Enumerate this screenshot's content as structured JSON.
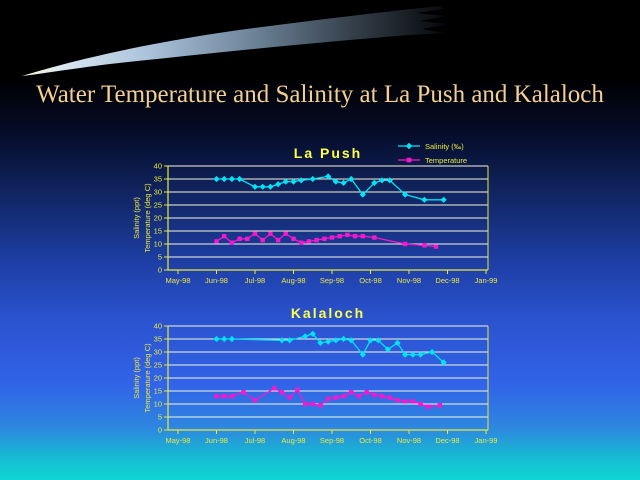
{
  "slide": {
    "title": "Water Temperature and Salinity at La Push and Kalaloch"
  },
  "colors": {
    "title_text": "#f4cf92",
    "chart_text": "#ece93c",
    "chart_title_text": "#ffff4a",
    "axis": "#e8e83a",
    "gridline": "#f6f6dc",
    "salinity": "#00e4f6",
    "temperature": "#f717cf",
    "background_top": "#000000",
    "background_bottom": "#0fd6d2"
  },
  "chart_data": [
    {
      "type": "line",
      "title": "La Push",
      "ylabel": [
        "Salinity (ppt)",
        "Temperature (deg C)"
      ],
      "x_tick_labels": [
        "May-98",
        "Jun-98",
        "Jul-98",
        "Aug-98",
        "Sep-98",
        "Oct-98",
        "Nov-98",
        "Dec-98",
        "Jan-99"
      ],
      "x_unit": "months, May-98 = 0",
      "xlim": [
        0,
        8
      ],
      "ylim": [
        0,
        40
      ],
      "y_ticks": [
        0,
        5,
        10,
        15,
        20,
        25,
        30,
        35,
        40
      ],
      "grid": true,
      "legend": true,
      "legend_position": "top-right",
      "series": [
        {
          "id": "salinity",
          "name": "Salinity (‰)",
          "color": "#00e4f6",
          "marker": "diamond",
          "x": [
            1.0,
            1.2,
            1.4,
            1.6,
            2.0,
            2.2,
            2.4,
            2.6,
            2.8,
            3.0,
            3.2,
            3.5,
            3.9,
            4.1,
            4.3,
            4.5,
            4.8,
            5.1,
            5.3,
            5.5,
            5.9,
            6.4,
            6.9
          ],
          "y": [
            35,
            35,
            35,
            35,
            32,
            32,
            32,
            33,
            34,
            34,
            34.5,
            35,
            36,
            34,
            33.5,
            35,
            29,
            33.5,
            34.5,
            34.5,
            29,
            27,
            27
          ]
        },
        {
          "id": "temperature",
          "name": "Temperature",
          "color": "#f717cf",
          "marker": "square",
          "x": [
            1.0,
            1.2,
            1.4,
            1.6,
            1.8,
            2.0,
            2.2,
            2.4,
            2.6,
            2.8,
            3.0,
            3.2,
            3.4,
            3.6,
            3.8,
            4.0,
            4.2,
            4.4,
            4.6,
            4.8,
            5.1,
            5.9,
            6.4,
            6.7
          ],
          "y": [
            11,
            13,
            10.5,
            12,
            12,
            14,
            11.5,
            14,
            11.5,
            14,
            12,
            10.5,
            11,
            11.5,
            12,
            12.5,
            13,
            13.5,
            13,
            13,
            12.5,
            10,
            9.5,
            9
          ]
        }
      ]
    },
    {
      "type": "line",
      "title": "Kalaloch",
      "ylabel": [
        "Salinity (ppt)",
        "Temperature (deg C)"
      ],
      "x_tick_labels": [
        "May-98",
        "Jun-98",
        "Jul-98",
        "Aug-98",
        "Sep-98",
        "Oct-98",
        "Nov-98",
        "Dec-98",
        "Jan-99"
      ],
      "x_unit": "months, May-98 = 0",
      "xlim": [
        0,
        8
      ],
      "ylim": [
        0,
        40
      ],
      "y_ticks": [
        0,
        5,
        10,
        15,
        20,
        25,
        30,
        35,
        40
      ],
      "grid": true,
      "legend": false,
      "series": [
        {
          "id": "salinity",
          "name": "Salinity (‰)",
          "color": "#00e4f6",
          "marker": "diamond",
          "x": [
            1.0,
            1.2,
            1.4,
            2.7,
            2.9,
            3.3,
            3.5,
            3.7,
            3.9,
            4.1,
            4.3,
            4.5,
            4.8,
            5.0,
            5.2,
            5.45,
            5.7,
            5.9,
            6.1,
            6.3,
            6.6,
            6.9
          ],
          "y": [
            35,
            35,
            35,
            34.5,
            34.5,
            36,
            37,
            33.5,
            34,
            34.5,
            35,
            34.5,
            29,
            34.5,
            34.5,
            31,
            33.5,
            29,
            29,
            29,
            30,
            26
          ]
        },
        {
          "id": "temperature",
          "name": "Temperature",
          "color": "#f717cf",
          "marker": "square",
          "x": [
            1.0,
            1.2,
            1.4,
            1.7,
            2.0,
            2.5,
            2.7,
            2.9,
            3.1,
            3.3,
            3.5,
            3.7,
            3.9,
            4.1,
            4.3,
            4.5,
            4.7,
            4.9,
            5.1,
            5.3,
            5.5,
            5.7,
            5.9,
            6.1,
            6.3,
            6.5,
            6.8
          ],
          "y": [
            13,
            13,
            13,
            14.5,
            11.5,
            16,
            14.5,
            12.5,
            15.5,
            10,
            10,
            9.5,
            12,
            12.5,
            13,
            14.5,
            13,
            14.5,
            13.5,
            13,
            12.5,
            11.5,
            11,
            11,
            10,
            9,
            9.5
          ]
        }
      ]
    }
  ]
}
